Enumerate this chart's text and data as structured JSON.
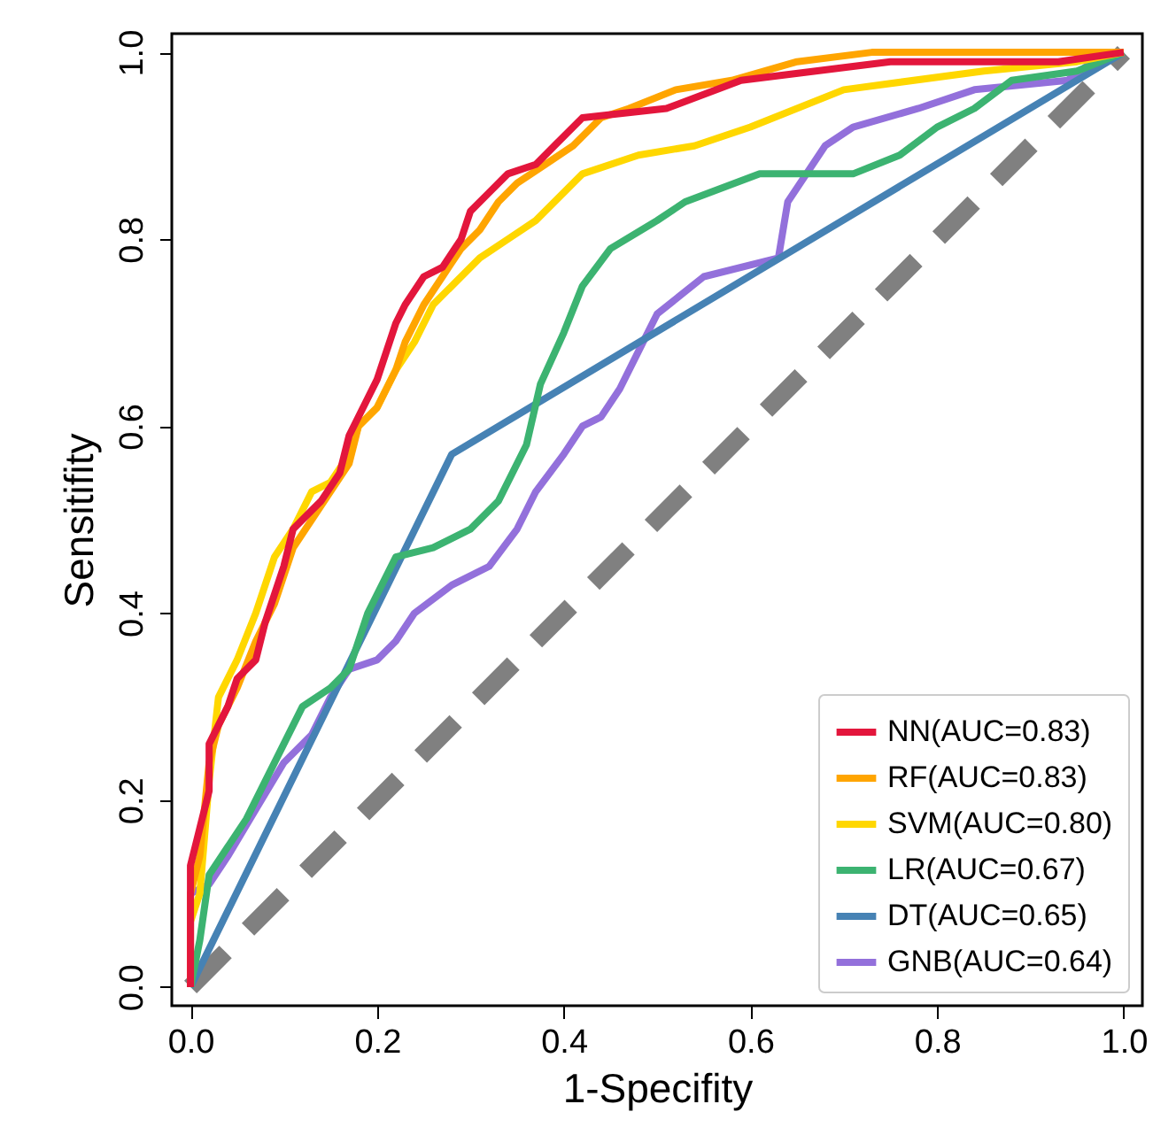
{
  "chart_data": {
    "type": "line",
    "xlabel": "1-Specifity",
    "ylabel": "Sensitifity",
    "xlim": [
      -0.02,
      1.02
    ],
    "ylim": [
      -0.02,
      1.02
    ],
    "xticks": [
      {
        "value": 0,
        "label": "0.0"
      },
      {
        "value": 0.2,
        "label": "0.2"
      },
      {
        "value": 0.4,
        "label": "0.4"
      },
      {
        "value": 0.6,
        "label": "0.6"
      },
      {
        "value": 0.8,
        "label": "0.8"
      },
      {
        "value": 1,
        "label": "1.0"
      }
    ],
    "yticks": [
      {
        "value": 0,
        "label": "0.0"
      },
      {
        "value": 0.2,
        "label": "0.2"
      },
      {
        "value": 0.4,
        "label": "0.4"
      },
      {
        "value": 0.6,
        "label": "0.6"
      },
      {
        "value": 0.8,
        "label": "0.8"
      },
      {
        "value": 1,
        "label": "1.0"
      }
    ],
    "grid": false,
    "legend": "bottom right",
    "series": [
      {
        "type": "line",
        "color": "#808080",
        "line_style": "dashed",
        "x": [
          0,
          1
        ],
        "values": [
          0,
          1
        ]
      },
      {
        "name": "GNB(AUC=0.64)",
        "color": "#9370db",
        "x": [
          0,
          0,
          0.02,
          0.04,
          0.07,
          0.1,
          0.13,
          0.15,
          0.17,
          0.2,
          0.22,
          0.24,
          0.28,
          0.32,
          0.35,
          0.37,
          0.4,
          0.42,
          0.44,
          0.46,
          0.485,
          0.5,
          0.55,
          0.63,
          0.64,
          0.68,
          0.71,
          0.78,
          0.84,
          0.94,
          0.98,
          1
        ],
        "values": [
          0,
          0.1,
          0.11,
          0.14,
          0.19,
          0.24,
          0.27,
          0.31,
          0.34,
          0.35,
          0.37,
          0.4,
          0.43,
          0.45,
          0.49,
          0.53,
          0.57,
          0.6,
          0.61,
          0.64,
          0.69,
          0.72,
          0.76,
          0.78,
          0.84,
          0.9,
          0.92,
          0.94,
          0.96,
          0.97,
          1.0,
          1
        ]
      },
      {
        "name": "DT(AUC=0.65)",
        "color": "#4682b4",
        "x": [
          0,
          0.28,
          1
        ],
        "values": [
          0,
          0.57,
          1
        ]
      },
      {
        "name": "LR(AUC=0.67)",
        "color": "#3cb371",
        "x": [
          0,
          0.01,
          0.02,
          0.04,
          0.06,
          0.08,
          0.1,
          0.12,
          0.15,
          0.17,
          0.19,
          0.22,
          0.26,
          0.3,
          0.33,
          0.36,
          0.375,
          0.4,
          0.42,
          0.45,
          0.5,
          0.53,
          0.61,
          0.71,
          0.76,
          0.8,
          0.84,
          0.88,
          0.95,
          1
        ],
        "values": [
          0,
          0.05,
          0.12,
          0.15,
          0.18,
          0.22,
          0.26,
          0.3,
          0.32,
          0.34,
          0.4,
          0.46,
          0.47,
          0.49,
          0.52,
          0.58,
          0.645,
          0.7,
          0.75,
          0.79,
          0.82,
          0.84,
          0.87,
          0.87,
          0.89,
          0.92,
          0.94,
          0.97,
          0.98,
          1
        ]
      },
      {
        "name": "SVM(AUC=0.80)",
        "color": "#ffd700",
        "x": [
          0,
          0,
          0.01,
          0.02,
          0.03,
          0.05,
          0.07,
          0.09,
          0.11,
          0.13,
          0.15,
          0.17,
          0.18,
          0.2,
          0.22,
          0.24,
          0.26,
          0.28,
          0.31,
          0.34,
          0.37,
          0.42,
          0.48,
          0.54,
          0.6,
          0.7,
          0.85,
          0.95,
          1
        ],
        "values": [
          0,
          0.07,
          0.1,
          0.22,
          0.31,
          0.35,
          0.4,
          0.46,
          0.49,
          0.53,
          0.54,
          0.57,
          0.6,
          0.62,
          0.66,
          0.69,
          0.73,
          0.75,
          0.78,
          0.8,
          0.82,
          0.87,
          0.89,
          0.9,
          0.92,
          0.96,
          0.98,
          0.99,
          1
        ]
      },
      {
        "name": "RF(AUC=0.83)",
        "color": "#ffa500",
        "x": [
          0,
          0,
          0.01,
          0.02,
          0.03,
          0.05,
          0.07,
          0.09,
          0.11,
          0.13,
          0.15,
          0.17,
          0.18,
          0.2,
          0.22,
          0.23,
          0.25,
          0.27,
          0.29,
          0.31,
          0.33,
          0.35,
          0.38,
          0.41,
          0.44,
          0.47,
          0.52,
          0.58,
          0.65,
          0.73,
          1
        ],
        "values": [
          0,
          0.1,
          0.14,
          0.24,
          0.28,
          0.32,
          0.37,
          0.41,
          0.47,
          0.5,
          0.53,
          0.56,
          0.6,
          0.62,
          0.66,
          0.69,
          0.73,
          0.76,
          0.79,
          0.81,
          0.84,
          0.86,
          0.88,
          0.9,
          0.93,
          0.94,
          0.96,
          0.97,
          0.99,
          1.0,
          1
        ]
      },
      {
        "name": "NN(AUC=0.83)",
        "color": "#e3163c",
        "x": [
          0,
          0,
          0.01,
          0.02,
          0.02,
          0.04,
          0.05,
          0.07,
          0.08,
          0.1,
          0.11,
          0.13,
          0.14,
          0.16,
          0.17,
          0.19,
          0.2,
          0.22,
          0.23,
          0.25,
          0.27,
          0.29,
          0.3,
          0.32,
          0.34,
          0.37,
          0.39,
          0.42,
          0.51,
          0.59,
          0.75,
          0.93,
          1
        ],
        "values": [
          0,
          0.13,
          0.17,
          0.21,
          0.26,
          0.3,
          0.33,
          0.35,
          0.39,
          0.45,
          0.49,
          0.51,
          0.52,
          0.55,
          0.59,
          0.63,
          0.65,
          0.71,
          0.73,
          0.76,
          0.77,
          0.8,
          0.83,
          0.85,
          0.87,
          0.88,
          0.9,
          0.93,
          0.94,
          0.97,
          0.99,
          0.99,
          1
        ]
      }
    ]
  }
}
